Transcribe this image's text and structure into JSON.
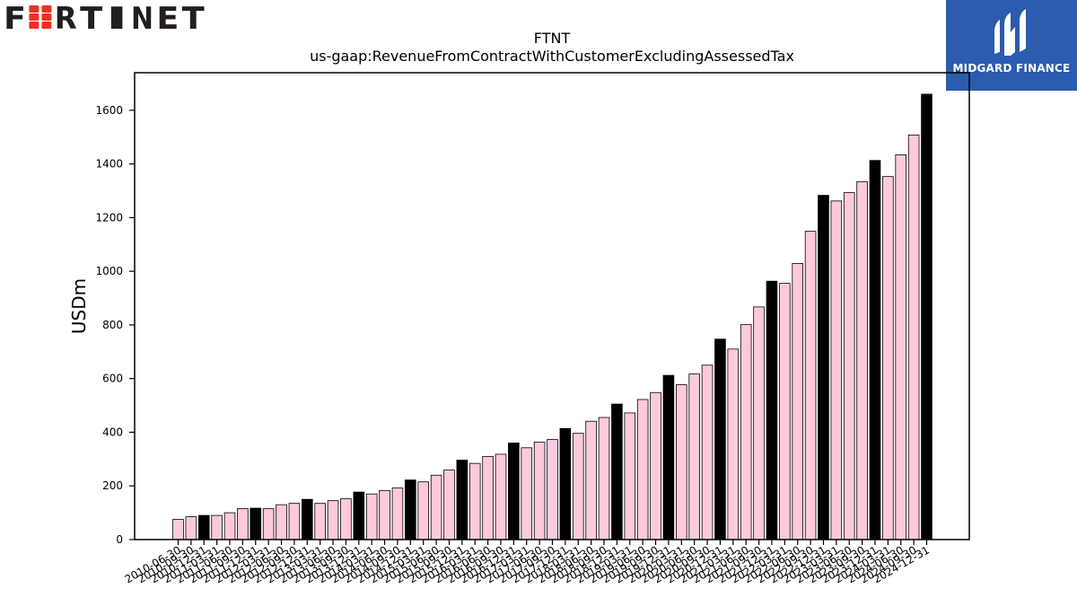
{
  "logos": {
    "left_brand": "FORTINET",
    "right_brand": "MIDGARD FINANCE"
  },
  "colors": {
    "bar_default": "#ffc9dc",
    "bar_fiscal_year": "#000000",
    "bar_edge": "#000000",
    "fortinet_dark": "#231f20",
    "fortinet_red": "#ee3124",
    "midgard_blue": "#2b5cad"
  },
  "chart_data": {
    "type": "bar",
    "title": "FTNT",
    "subtitle": "us-gaap:RevenueFromContractWithCustomerExcludingAssessedTax",
    "ylabel": "USDm",
    "xlabel": "",
    "ylim": [
      0,
      1740
    ],
    "yticks": [
      0,
      200,
      400,
      600,
      800,
      1000,
      1200,
      1400,
      1600
    ],
    "grid": false,
    "categories": [
      "2010-06-30",
      "2010-09-30",
      "2010-12-31",
      "2011-03-31",
      "2011-06-30",
      "2011-09-30",
      "2011-12-31",
      "2012-03-31",
      "2012-06-30",
      "2012-09-30",
      "2012-12-31",
      "2013-03-31",
      "2013-06-30",
      "2013-09-30",
      "2013-12-31",
      "2014-03-31",
      "2014-06-30",
      "2014-09-30",
      "2014-12-31",
      "2015-03-31",
      "2015-06-30",
      "2015-09-30",
      "2015-12-31",
      "2016-03-31",
      "2016-06-30",
      "2016-09-30",
      "2016-12-31",
      "2017-03-31",
      "2017-06-30",
      "2017-09-30",
      "2017-12-31",
      "2018-03-31",
      "2018-06-30",
      "2018-09-30",
      "2018-12-31",
      "2019-03-31",
      "2019-06-30",
      "2019-09-30",
      "2019-12-31",
      "2020-03-31",
      "2020-06-30",
      "2020-09-30",
      "2020-12-31",
      "2021-03-31",
      "2021-06-30",
      "2021-09-30",
      "2021-12-31",
      "2022-03-31",
      "2022-06-30",
      "2022-09-30",
      "2022-12-31",
      "2023-03-31",
      "2023-06-30",
      "2023-09-30",
      "2023-12-31",
      "2024-03-31",
      "2024-06-30",
      "2024-09-30",
      "2024-12-31"
    ],
    "values": [
      75,
      85,
      90,
      90,
      100,
      115,
      117,
      115,
      130,
      135,
      150,
      135,
      145,
      152,
      177,
      170,
      183,
      192,
      222,
      215,
      240,
      259,
      296,
      284,
      310,
      318,
      360,
      342,
      363,
      373,
      414,
      396,
      441,
      455,
      505,
      472,
      522,
      548,
      612,
      577,
      617,
      650,
      747,
      710,
      801,
      867,
      963,
      955,
      1029,
      1149,
      1283,
      1262,
      1293,
      1334,
      1413,
      1353,
      1434,
      1508,
      1660
    ],
    "highlight": [
      false,
      false,
      true,
      false,
      false,
      false,
      true,
      false,
      false,
      false,
      true,
      false,
      false,
      false,
      true,
      false,
      false,
      false,
      true,
      false,
      false,
      false,
      true,
      false,
      false,
      false,
      true,
      false,
      false,
      false,
      true,
      false,
      false,
      false,
      true,
      false,
      false,
      false,
      true,
      false,
      false,
      false,
      true,
      false,
      false,
      false,
      true,
      false,
      false,
      false,
      true,
      false,
      false,
      false,
      true,
      false,
      false,
      false,
      true
    ]
  }
}
